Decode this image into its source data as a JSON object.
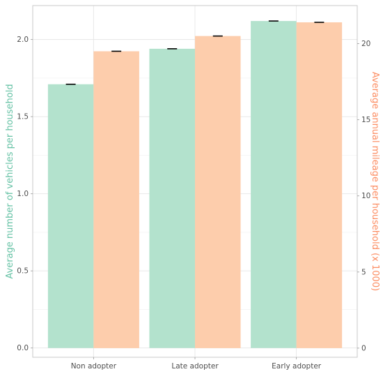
{
  "chart_data": {
    "type": "bar",
    "categories": [
      "Non adopter",
      "Late adopter",
      "Early adopter"
    ],
    "series": [
      {
        "name": "Average number of vehicles per household",
        "axis": "left",
        "color": "#b3e2cd",
        "values": [
          1.71,
          1.94,
          2.12
        ],
        "error_bars": true
      },
      {
        "name": "Average annual mileage per household (x 1000)",
        "axis": "right",
        "color": "#fdcdac",
        "values": [
          19.5,
          20.5,
          21.4
        ],
        "error_bars": true
      }
    ],
    "xlabel": "",
    "ylabel_left": "Average number of vehicles per household",
    "ylabel_right": "Average annual mileage per household (x 1000)",
    "ylim_left": [
      -0.06,
      2.22
    ],
    "ylim_right": [
      -0.6,
      22.5
    ],
    "yticks_left": [
      0.0,
      0.5,
      1.0,
      1.5,
      2.0
    ],
    "ytick_labels_left": [
      "0.0",
      "0.5",
      "1.0",
      "1.5",
      "2.0"
    ],
    "yticks_right": [
      0,
      5,
      10,
      15,
      20
    ],
    "ytick_labels_right": [
      "0",
      "5",
      "10",
      "15",
      "20"
    ],
    "left_label_color": "#66c2a5",
    "right_label_color": "#fc8d62",
    "grid": true
  }
}
